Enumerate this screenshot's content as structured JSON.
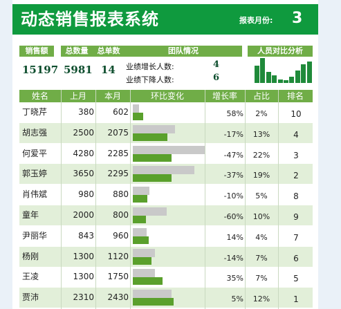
{
  "header": {
    "title": "动态销售报表系统",
    "month_label": "报表月份:",
    "month_value": "3"
  },
  "summary": {
    "headers": [
      "销售额",
      "总数量",
      "总单数",
      "团队情况",
      "人员对比分析"
    ],
    "sales": "15197",
    "quantity": "5981",
    "orders": "14",
    "team": {
      "up_label": "业绩增长人数:",
      "up_value": "4",
      "down_label": "业绩下降人数:",
      "down_value": "6"
    },
    "spark_levels": [
      0.7,
      1.0,
      0.45,
      0.3,
      0.15,
      0.1,
      0.25,
      0.5,
      0.75,
      0.85
    ]
  },
  "table": {
    "columns": [
      "姓名",
      "上月",
      "本月",
      "环比变化",
      "增长率",
      "占比",
      "排名"
    ],
    "bar_max": 4280,
    "rows": [
      {
        "name": "丁晓芹",
        "prev": "380",
        "cur": "602",
        "prev_n": 380,
        "cur_n": 602,
        "rate": "58%",
        "share": "2%",
        "rank": "10"
      },
      {
        "name": "胡志强",
        "prev": "2500",
        "cur": "2075",
        "prev_n": 2500,
        "cur_n": 2075,
        "rate": "-17%",
        "share": "13%",
        "rank": "4"
      },
      {
        "name": "何爱平",
        "prev": "4280",
        "cur": "2285",
        "prev_n": 4280,
        "cur_n": 2285,
        "rate": "-47%",
        "share": "22%",
        "rank": "3"
      },
      {
        "name": "郭玉婷",
        "prev": "3650",
        "cur": "2295",
        "prev_n": 3650,
        "cur_n": 2295,
        "rate": "-37%",
        "share": "19%",
        "rank": "2"
      },
      {
        "name": "肖伟斌",
        "prev": "980",
        "cur": "880",
        "prev_n": 980,
        "cur_n": 880,
        "rate": "-10%",
        "share": "5%",
        "rank": "8"
      },
      {
        "name": "童年",
        "prev": "2000",
        "cur": "800",
        "prev_n": 2000,
        "cur_n": 800,
        "rate": "-60%",
        "share": "10%",
        "rank": "9"
      },
      {
        "name": "尹丽华",
        "prev": "843",
        "cur": "960",
        "prev_n": 843,
        "cur_n": 960,
        "rate": "14%",
        "share": "4%",
        "rank": "7"
      },
      {
        "name": "杨刚",
        "prev": "1300",
        "cur": "1120",
        "prev_n": 1300,
        "cur_n": 1120,
        "rate": "-14%",
        "share": "7%",
        "rank": "6"
      },
      {
        "name": "王凌",
        "prev": "1300",
        "cur": "1750",
        "prev_n": 1300,
        "cur_n": 1750,
        "rate": "35%",
        "share": "7%",
        "rank": "5"
      },
      {
        "name": "贾沛",
        "prev": "2310",
        "cur": "2430",
        "prev_n": 2310,
        "cur_n": 2430,
        "rate": "5%",
        "share": "12%",
        "rank": "1"
      }
    ]
  }
}
